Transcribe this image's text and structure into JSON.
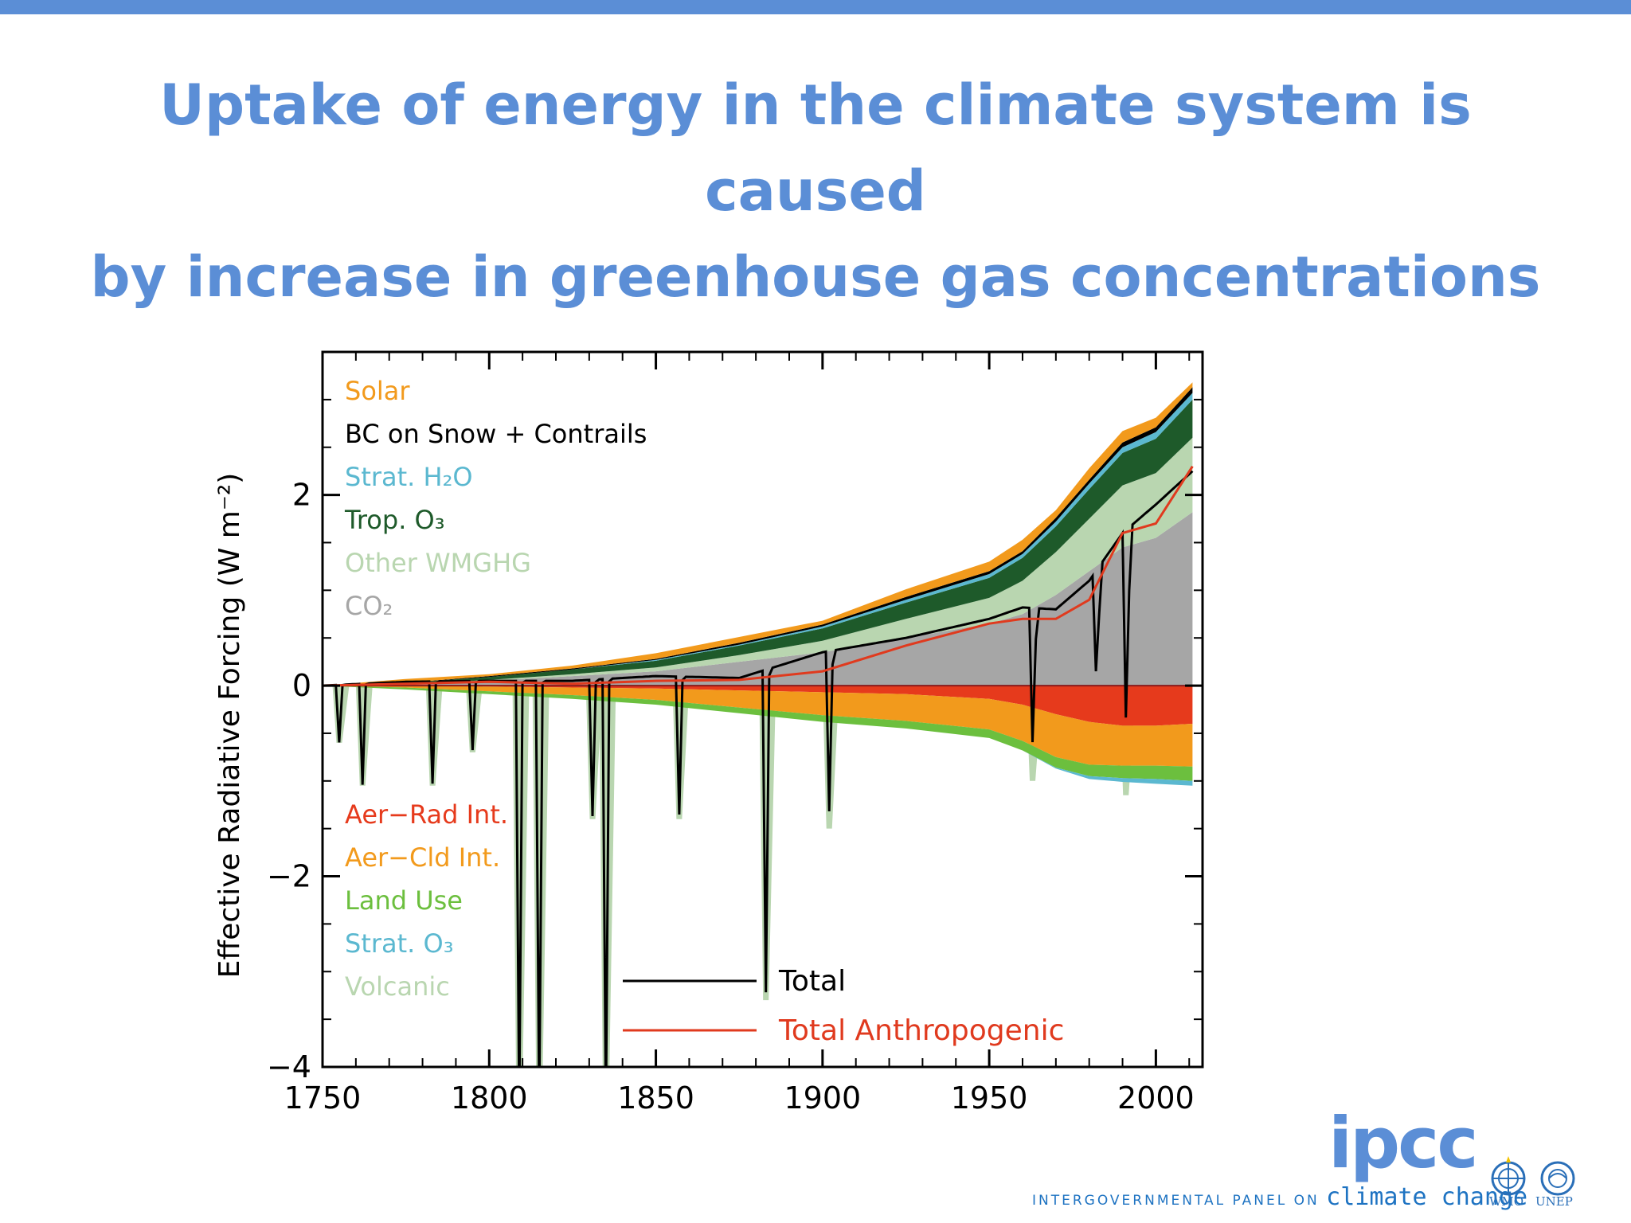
{
  "slide": {
    "title_line1": "Uptake of energy in the climate system is caused",
    "title_line2": "by increase in greenhouse gas concentrations",
    "accent_color": "#5b8ed6",
    "footer": {
      "logo_text": "ipcc",
      "caption_prefix": "INTERGOVERNMENTAL PANEL ON",
      "caption_suffix": "climate change",
      "org1": "WMO",
      "org2": "UNEP"
    }
  },
  "chart_data": {
    "type": "area",
    "title": "",
    "xlabel": "",
    "ylabel": "Effective Radiative Forcing (W m⁻²)",
    "xlim": [
      1750,
      2014
    ],
    "ylim": [
      -4,
      3.5
    ],
    "x_ticks": [
      1750,
      1800,
      1850,
      1900,
      1950,
      2000
    ],
    "x_tick_labels": [
      "1750",
      "1800",
      "1850",
      "1900",
      "1950",
      "2000"
    ],
    "y_ticks": [
      -4,
      -2,
      0,
      2
    ],
    "y_tick_labels": [
      "−4",
      "−2",
      "0",
      "2"
    ],
    "grid": false,
    "legend_positive": [
      {
        "label": "Solar",
        "color": "#f29a1c"
      },
      {
        "label": "BC on Snow + Contrails",
        "color": "#000000"
      },
      {
        "label": "Strat. H₂O",
        "color": "#5bb8d0"
      },
      {
        "label": "Trop. O₃",
        "color": "#1e5a2a"
      },
      {
        "label": "Other WMGHG",
        "color": "#b9d6b0"
      },
      {
        "label": "CO₂",
        "color": "#a6a6a6"
      }
    ],
    "legend_negative": [
      {
        "label": "Aer−Rad Int.",
        "color": "#e63a1c"
      },
      {
        "label": "Aer−Cld Int.",
        "color": "#f29a1c"
      },
      {
        "label": "Land Use",
        "color": "#6cbf3e"
      },
      {
        "label": "Strat. O₃",
        "color": "#5bb8d0"
      },
      {
        "label": "Volcanic",
        "color": "#b9d6b0"
      }
    ],
    "legend_lines": [
      {
        "label": "Total",
        "color": "#000000"
      },
      {
        "label": "Total Anthropogenic",
        "color": "#e03a1e"
      }
    ],
    "x": [
      1750,
      1775,
      1800,
      1825,
      1850,
      1875,
      1900,
      1925,
      1950,
      1960,
      1970,
      1980,
      1990,
      2000,
      2011
    ],
    "positive_stack": [
      {
        "name": "CO₂",
        "color": "#a6a6a6",
        "values": [
          0,
          0.01,
          0.05,
          0.1,
          0.15,
          0.25,
          0.35,
          0.5,
          0.65,
          0.75,
          0.95,
          1.2,
          1.45,
          1.55,
          1.82
        ]
      },
      {
        "name": "Other WMGHG",
        "color": "#b9d6b0",
        "values": [
          0,
          0.0,
          0.01,
          0.02,
          0.04,
          0.07,
          0.12,
          0.2,
          0.27,
          0.35,
          0.45,
          0.55,
          0.65,
          0.68,
          0.78
        ]
      },
      {
        "name": "Trop. O₃",
        "color": "#1e5a2a",
        "values": [
          0,
          0.02,
          0.03,
          0.05,
          0.07,
          0.1,
          0.13,
          0.17,
          0.21,
          0.24,
          0.27,
          0.31,
          0.34,
          0.36,
          0.4
        ]
      },
      {
        "name": "Strat. H₂O",
        "color": "#5bb8d0",
        "values": [
          0,
          0.0,
          0.0,
          0.0,
          0.01,
          0.01,
          0.02,
          0.03,
          0.04,
          0.04,
          0.05,
          0.06,
          0.06,
          0.07,
          0.07
        ]
      },
      {
        "name": "BC on Snow + Contrails",
        "color": "#000000",
        "values": [
          0,
          0.0,
          0.01,
          0.01,
          0.01,
          0.02,
          0.02,
          0.03,
          0.03,
          0.03,
          0.04,
          0.04,
          0.05,
          0.05,
          0.06
        ]
      },
      {
        "name": "Solar",
        "color": "#f29a1c",
        "values": [
          0.0,
          0.04,
          0.02,
          0.03,
          0.06,
          0.06,
          0.04,
          0.08,
          0.1,
          0.12,
          0.08,
          0.12,
          0.12,
          0.1,
          0.05
        ]
      }
    ],
    "negative_stack": [
      {
        "name": "Aer−Rad Int.",
        "color": "#e63a1c",
        "values": [
          0,
          0.0,
          -0.01,
          -0.02,
          -0.03,
          -0.05,
          -0.07,
          -0.09,
          -0.14,
          -0.2,
          -0.3,
          -0.38,
          -0.42,
          -0.42,
          -0.4
        ]
      },
      {
        "name": "Aer−Cld Int.",
        "color": "#f29a1c",
        "values": [
          0,
          -0.02,
          -0.05,
          -0.08,
          -0.12,
          -0.18,
          -0.24,
          -0.28,
          -0.32,
          -0.38,
          -0.45,
          -0.45,
          -0.42,
          -0.42,
          -0.45
        ]
      },
      {
        "name": "Land Use",
        "color": "#6cbf3e",
        "values": [
          0,
          -0.02,
          -0.03,
          -0.04,
          -0.05,
          -0.06,
          -0.07,
          -0.08,
          -0.09,
          -0.1,
          -0.11,
          -0.12,
          -0.13,
          -0.14,
          -0.15
        ]
      },
      {
        "name": "Strat. O₃",
        "color": "#5bb8d0",
        "values": [
          0,
          0,
          0,
          0,
          0,
          0,
          0,
          0,
          0,
          0,
          -0.01,
          -0.03,
          -0.04,
          -0.05,
          -0.05
        ]
      }
    ],
    "total_anthropogenic": [
      0,
      0.02,
      0.04,
      0.02,
      0.05,
      0.06,
      0.15,
      0.42,
      0.65,
      0.7,
      0.7,
      0.9,
      1.6,
      1.7,
      2.3
    ],
    "total_net_smooth": [
      0,
      0.04,
      0.05,
      0.05,
      0.1,
      0.08,
      0.35,
      0.5,
      0.7,
      0.82,
      0.8,
      1.1,
      1.6,
      1.9,
      2.25
    ],
    "volcanic_events": [
      {
        "year": 1755,
        "forcing": -0.6
      },
      {
        "year": 1762,
        "forcing": -1.05
      },
      {
        "year": 1783,
        "forcing": -1.05
      },
      {
        "year": 1795,
        "forcing": -0.7
      },
      {
        "year": 1809,
        "forcing": -4.5
      },
      {
        "year": 1815,
        "forcing": -4.5
      },
      {
        "year": 1831,
        "forcing": -1.4
      },
      {
        "year": 1835,
        "forcing": -4.5
      },
      {
        "year": 1857,
        "forcing": -1.4
      },
      {
        "year": 1883,
        "forcing": -3.3
      },
      {
        "year": 1902,
        "forcing": -1.5
      },
      {
        "year": 1963,
        "forcing": -1.0
      },
      {
        "year": 1982,
        "forcing": -0.45
      },
      {
        "year": 1991,
        "forcing": -1.15
      }
    ]
  }
}
